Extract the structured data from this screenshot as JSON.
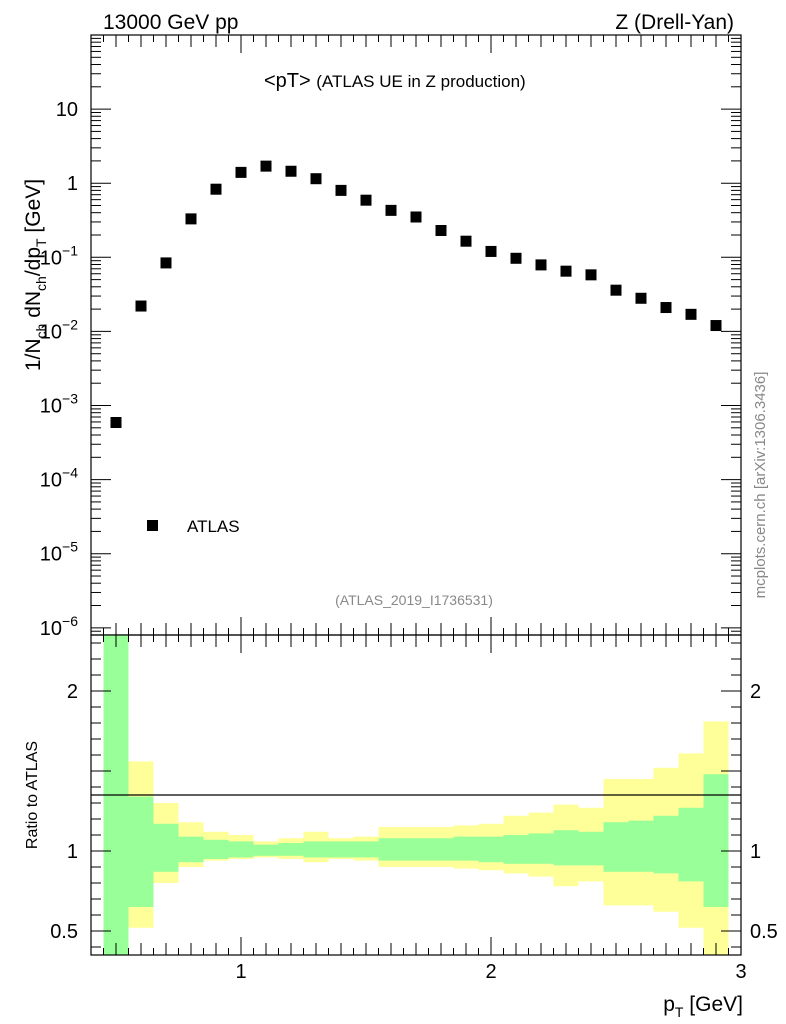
{
  "header": {
    "left": "13000 GeV pp",
    "right": "Z (Drell-Yan)"
  },
  "side_label": "mcplots.cern.ch [arXiv:1306.3436]",
  "chart_data": [
    {
      "type": "scatter",
      "title": "<pT> (ATLAS UE in Z production)",
      "title_main": "<pT>",
      "title_sub": "(ATLAS UE in Z production)",
      "analysis_id": "(ATLAS_2019_I1736531)",
      "ylabel": "1/N_ch dN_ch/dp_T [GeV]",
      "ylabel_parts": {
        "a": "1/N",
        "b": "ch",
        "c": " dN",
        "d": "ch",
        "e": "/dp",
        "f": "T",
        "g": " [GeV]"
      },
      "yscale": "log",
      "ylim": [
        8e-07,
        100
      ],
      "xlim": [
        0.4,
        3.0
      ],
      "y_tick_labels": [
        {
          "value": 10,
          "base": "10",
          "exp": ""
        },
        {
          "value": 1,
          "base": "1",
          "exp": ""
        },
        {
          "value": 0.1,
          "base": "10",
          "exp": "−1"
        },
        {
          "value": 0.01,
          "base": "10",
          "exp": "−2"
        },
        {
          "value": 0.001,
          "base": "10",
          "exp": "−3"
        },
        {
          "value": 0.0001,
          "base": "10",
          "exp": "−4"
        },
        {
          "value": 1e-05,
          "base": "10",
          "exp": "−5"
        },
        {
          "value": 1e-06,
          "base": "10",
          "exp": "−6"
        }
      ],
      "legend": {
        "label": "ATLAS",
        "position": "bottom-left"
      },
      "series": [
        {
          "name": "ATLAS",
          "x": [
            0.5,
            0.6,
            0.7,
            0.8,
            0.9,
            1.0,
            1.1,
            1.2,
            1.3,
            1.4,
            1.5,
            1.6,
            1.7,
            1.8,
            1.9,
            2.0,
            2.1,
            2.2,
            2.3,
            2.4,
            2.5,
            2.6,
            2.7,
            2.8,
            2.9
          ],
          "values": [
            0.00059,
            0.022,
            0.084,
            0.33,
            0.83,
            1.4,
            1.7,
            1.45,
            1.15,
            0.8,
            0.59,
            0.43,
            0.35,
            0.23,
            0.165,
            0.12,
            0.097,
            0.079,
            0.065,
            0.058,
            0.036,
            0.028,
            0.021,
            0.017,
            0.012
          ]
        }
      ]
    },
    {
      "type": "area",
      "ylabel": "Ratio to ATLAS",
      "xlabel": "p_T [GeV]",
      "xlabel_parts": {
        "a": "p",
        "b": "T",
        "c": " [GeV]"
      },
      "xlim": [
        0.4,
        3.0
      ],
      "ylim": [
        0.35,
        2.35
      ],
      "x_tick_labels": [
        {
          "value": 1,
          "label": "1"
        },
        {
          "value": 2,
          "label": "2"
        },
        {
          "value": 3,
          "label": "3"
        }
      ],
      "y_tick_labels": [
        {
          "value": 2,
          "label": "2"
        },
        {
          "value": 1,
          "label": "1"
        },
        {
          "value": 0.5,
          "label": "0.5"
        }
      ],
      "reference_line": 1,
      "bin_edges": [
        0.45,
        0.55,
        0.65,
        0.75,
        0.85,
        0.95,
        1.05,
        1.15,
        1.25,
        1.35,
        1.45,
        1.55,
        1.65,
        1.75,
        1.85,
        1.95,
        2.05,
        2.15,
        2.25,
        2.35,
        2.45,
        2.55,
        2.65,
        2.75,
        2.85,
        2.95
      ],
      "bands": [
        {
          "name": "total uncertainty",
          "color": "#ffff99",
          "lower": [
            0.35,
            0.52,
            0.8,
            0.9,
            0.94,
            0.95,
            0.96,
            0.95,
            0.93,
            0.95,
            0.94,
            0.9,
            0.9,
            0.9,
            0.89,
            0.88,
            0.86,
            0.84,
            0.78,
            0.81,
            0.66,
            0.66,
            0.62,
            0.52,
            0.35
          ],
          "upper": [
            2.35,
            1.56,
            1.3,
            1.18,
            1.12,
            1.1,
            1.06,
            1.08,
            1.12,
            1.08,
            1.09,
            1.15,
            1.15,
            1.15,
            1.16,
            1.17,
            1.22,
            1.24,
            1.29,
            1.27,
            1.45,
            1.45,
            1.52,
            1.61,
            1.81
          ]
        },
        {
          "name": "statistical uncertainty",
          "color": "#99ff99",
          "lower": [
            0.35,
            0.65,
            0.87,
            0.93,
            0.95,
            0.96,
            0.97,
            0.97,
            0.96,
            0.96,
            0.96,
            0.94,
            0.94,
            0.94,
            0.94,
            0.93,
            0.92,
            0.92,
            0.91,
            0.91,
            0.87,
            0.87,
            0.86,
            0.81,
            0.65
          ],
          "upper": [
            2.35,
            1.34,
            1.17,
            1.09,
            1.07,
            1.06,
            1.04,
            1.05,
            1.06,
            1.06,
            1.06,
            1.08,
            1.08,
            1.08,
            1.09,
            1.09,
            1.1,
            1.11,
            1.13,
            1.12,
            1.18,
            1.19,
            1.22,
            1.27,
            1.48
          ]
        }
      ]
    }
  ]
}
